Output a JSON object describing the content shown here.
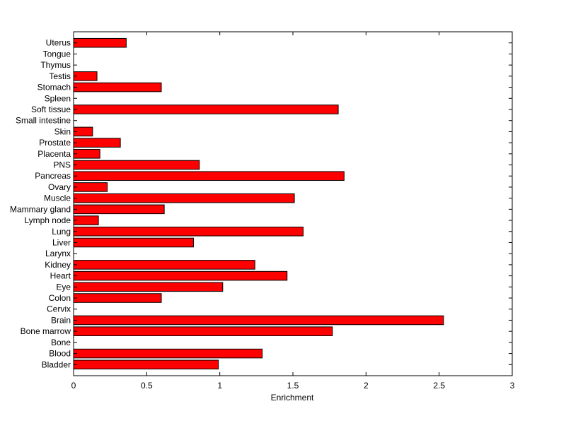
{
  "chart_data": {
    "type": "bar",
    "orientation": "horizontal",
    "title": "",
    "xlabel": "Enrichment",
    "ylabel": "",
    "xlim": [
      0,
      3
    ],
    "xticks": [
      0,
      0.5,
      1,
      1.5,
      2,
      2.5,
      3
    ],
    "xtick_labels": [
      "0",
      "0.5",
      "1",
      "1.5",
      "2",
      "2.5",
      "3"
    ],
    "grid": false,
    "legend": "none",
    "bar_color": "#ff0000",
    "bar_edge_color": "#000000",
    "categories": [
      "Bladder",
      "Blood",
      "Bone",
      "Bone marrow",
      "Brain",
      "Cervix",
      "Colon",
      "Eye",
      "Heart",
      "Kidney",
      "Larynx",
      "Liver",
      "Lung",
      "Lymph node",
      "Mammary gland",
      "Muscle",
      "Ovary",
      "Pancreas",
      "PNS",
      "Placenta",
      "Prostate",
      "Skin",
      "Small intestine",
      "Soft tissue",
      "Spleen",
      "Stomach",
      "Testis",
      "Thymus",
      "Tongue",
      "Uterus"
    ],
    "values": [
      0.99,
      1.29,
      0,
      1.77,
      2.53,
      0,
      0.6,
      1.02,
      1.46,
      1.24,
      0,
      0.82,
      1.57,
      0.17,
      0.62,
      1.51,
      0.23,
      1.85,
      0.86,
      0.18,
      0.32,
      0.13,
      0,
      1.81,
      0,
      0.6,
      0.16,
      0,
      0,
      0.36
    ]
  }
}
